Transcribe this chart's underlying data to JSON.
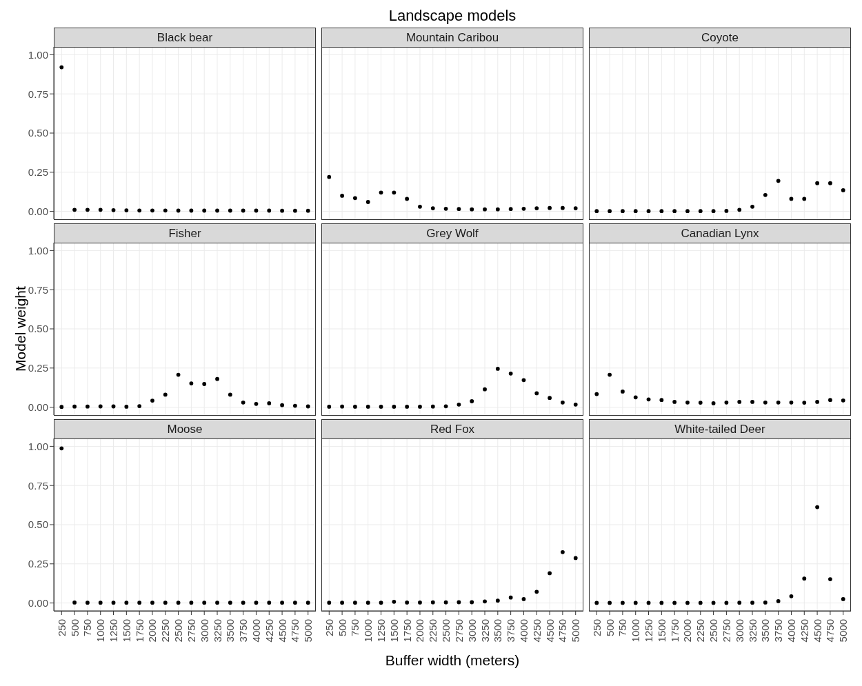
{
  "chart_data": [
    {
      "type": "scatter",
      "title": "Black bear",
      "categories": [
        "250",
        "500",
        "750",
        "1000",
        "1250",
        "1500",
        "1750",
        "2000",
        "2250",
        "2500",
        "2750",
        "3000",
        "3250",
        "3500",
        "3750",
        "4000",
        "4250",
        "4500",
        "4750",
        "5000"
      ],
      "series": [
        {
          "color": "#000000",
          "values": [
            0.92,
            0.01,
            0.01,
            0.01,
            0.008,
            0.007,
            0.006,
            0.006,
            0.006,
            0.005,
            0.005,
            0.005,
            0.005,
            0.005,
            0.005,
            0.005,
            0.005,
            0.004,
            0.004,
            0.004
          ]
        }
      ],
      "ylim": [
        -0.05,
        1.05
      ],
      "yticks": [
        {
          "value": 0,
          "label": "0.00"
        },
        {
          "value": 0.25,
          "label": "0.25"
        },
        {
          "value": 0.5,
          "label": "0.50"
        },
        {
          "value": 0.75,
          "label": "0.75"
        },
        {
          "value": 1,
          "label": "1.00"
        }
      ],
      "grid": true,
      "marker": "circle",
      "tick_labels": "y"
    },
    {
      "type": "scatter",
      "title": "Mountain Caribou",
      "annotations": [
        "Landscape models"
      ],
      "categories": [
        "250",
        "500",
        "750",
        "1000",
        "1250",
        "1500",
        "1750",
        "2000",
        "2250",
        "2500",
        "2750",
        "3000",
        "3250",
        "3500",
        "3750",
        "4000",
        "4250",
        "4500",
        "4750",
        "5000"
      ],
      "series": [
        {
          "color": "#000000",
          "values": [
            0.22,
            0.1,
            0.085,
            0.06,
            0.12,
            0.12,
            0.08,
            0.03,
            0.02,
            0.017,
            0.015,
            0.013,
            0.013,
            0.013,
            0.015,
            0.017,
            0.02,
            0.022,
            0.022,
            0.02
          ]
        }
      ],
      "ylim": [
        -0.05,
        1.05
      ],
      "yticks": [
        0,
        0.25,
        0.5,
        0.75,
        1
      ],
      "grid": true,
      "marker": "circle",
      "tick_labels": false
    },
    {
      "type": "scatter",
      "title": "Coyote",
      "categories": [
        "250",
        "500",
        "750",
        "1000",
        "1250",
        "1500",
        "1750",
        "2000",
        "2250",
        "2500",
        "2750",
        "3000",
        "3250",
        "3500",
        "3750",
        "4000",
        "4250",
        "4500",
        "4750",
        "5000"
      ],
      "series": [
        {
          "color": "#000000",
          "values": [
            0.002,
            0.002,
            0.002,
            0.002,
            0.002,
            0.002,
            0.002,
            0.002,
            0.002,
            0.002,
            0.003,
            0.01,
            0.03,
            0.105,
            0.195,
            0.08,
            0.08,
            0.18,
            0.18,
            0.135
          ]
        }
      ],
      "ylim": [
        -0.05,
        1.05
      ],
      "yticks": [
        0,
        0.25,
        0.5,
        0.75,
        1
      ],
      "grid": true,
      "marker": "circle",
      "tick_labels": false
    },
    {
      "type": "scatter",
      "title": "Fisher",
      "ylabel": "Model weight",
      "categories": [
        "250",
        "500",
        "750",
        "1000",
        "1250",
        "1500",
        "1750",
        "2000",
        "2250",
        "2500",
        "2750",
        "3000",
        "3250",
        "3500",
        "3750",
        "4000",
        "4250",
        "4500",
        "4750",
        "5000"
      ],
      "series": [
        {
          "color": "#000000",
          "values": [
            0.002,
            0.004,
            0.004,
            0.005,
            0.005,
            0.003,
            0.007,
            0.042,
            0.08,
            0.207,
            0.152,
            0.148,
            0.18,
            0.08,
            0.03,
            0.021,
            0.025,
            0.013,
            0.009,
            0.005
          ]
        }
      ],
      "ylim": [
        -0.05,
        1.05
      ],
      "yticks": [
        {
          "value": 0,
          "label": "0.00"
        },
        {
          "value": 0.25,
          "label": "0.25"
        },
        {
          "value": 0.5,
          "label": "0.50"
        },
        {
          "value": 0.75,
          "label": "0.75"
        },
        {
          "value": 1,
          "label": "1.00"
        }
      ],
      "grid": true,
      "marker": "circle",
      "tick_labels": "y"
    },
    {
      "type": "scatter",
      "title": "Grey Wolf",
      "categories": [
        "250",
        "500",
        "750",
        "1000",
        "1250",
        "1500",
        "1750",
        "2000",
        "2250",
        "2500",
        "2750",
        "3000",
        "3250",
        "3500",
        "3750",
        "4000",
        "4250",
        "4500",
        "4750",
        "5000"
      ],
      "series": [
        {
          "color": "#000000",
          "values": [
            0.003,
            0.004,
            0.003,
            0.003,
            0.003,
            0.003,
            0.003,
            0.003,
            0.004,
            0.006,
            0.017,
            0.038,
            0.114,
            0.245,
            0.215,
            0.173,
            0.089,
            0.059,
            0.03,
            0.017
          ]
        }
      ],
      "ylim": [
        -0.05,
        1.05
      ],
      "yticks": [
        0,
        0.25,
        0.5,
        0.75,
        1
      ],
      "grid": true,
      "marker": "circle",
      "tick_labels": false
    },
    {
      "type": "scatter",
      "title": "Canadian Lynx",
      "categories": [
        "250",
        "500",
        "750",
        "1000",
        "1250",
        "1500",
        "1750",
        "2000",
        "2250",
        "2500",
        "2750",
        "3000",
        "3250",
        "3500",
        "3750",
        "4000",
        "4250",
        "4500",
        "4750",
        "5000"
      ],
      "series": [
        {
          "color": "#000000",
          "values": [
            0.084,
            0.207,
            0.1,
            0.063,
            0.05,
            0.046,
            0.034,
            0.03,
            0.029,
            0.025,
            0.03,
            0.034,
            0.034,
            0.03,
            0.03,
            0.03,
            0.029,
            0.034,
            0.046,
            0.043
          ]
        }
      ],
      "ylim": [
        -0.05,
        1.05
      ],
      "yticks": [
        0,
        0.25,
        0.5,
        0.75,
        1
      ],
      "grid": true,
      "marker": "circle",
      "tick_labels": false
    },
    {
      "type": "scatter",
      "title": "Moose",
      "categories": [
        "250",
        "500",
        "750",
        "1000",
        "1250",
        "1500",
        "1750",
        "2000",
        "2250",
        "2500",
        "2750",
        "3000",
        "3250",
        "3500",
        "3750",
        "4000",
        "4250",
        "4500",
        "4750",
        "5000"
      ],
      "series": [
        {
          "color": "#000000",
          "values": [
            0.987,
            0.003,
            0.002,
            0.002,
            0.002,
            0.002,
            0.002,
            0.002,
            0.002,
            0.002,
            0.002,
            0.002,
            0.002,
            0.002,
            0.002,
            0.002,
            0.002,
            0.002,
            0.002,
            0.002
          ]
        }
      ],
      "ylim": [
        -0.05,
        1.05
      ],
      "yticks": [
        {
          "value": 0,
          "label": "0.00"
        },
        {
          "value": 0.25,
          "label": "0.25"
        },
        {
          "value": 0.5,
          "label": "0.50"
        },
        {
          "value": 0.75,
          "label": "0.75"
        },
        {
          "value": 1,
          "label": "1.00"
        }
      ],
      "grid": true,
      "marker": "circle"
    },
    {
      "type": "scatter",
      "title": "Red Fox",
      "xlabel": "Buffer width (meters)",
      "categories": [
        "250",
        "500",
        "750",
        "1000",
        "1250",
        "1500",
        "1750",
        "2000",
        "2250",
        "2500",
        "2750",
        "3000",
        "3250",
        "3500",
        "3750",
        "4000",
        "4250",
        "4500",
        "4750",
        "5000"
      ],
      "series": [
        {
          "color": "#000000",
          "values": [
            0.002,
            0.002,
            0.002,
            0.002,
            0.002,
            0.008,
            0.003,
            0.003,
            0.004,
            0.004,
            0.005,
            0.005,
            0.01,
            0.015,
            0.035,
            0.025,
            0.072,
            0.19,
            0.325,
            0.287
          ]
        }
      ],
      "ylim": [
        -0.05,
        1.05
      ],
      "yticks": [
        0,
        0.25,
        0.5,
        0.75,
        1
      ],
      "grid": true,
      "marker": "circle",
      "tick_labels": "x"
    },
    {
      "type": "scatter",
      "title": "White-tailed Deer",
      "categories": [
        "250",
        "500",
        "750",
        "1000",
        "1250",
        "1500",
        "1750",
        "2000",
        "2250",
        "2500",
        "2750",
        "3000",
        "3250",
        "3500",
        "3750",
        "4000",
        "4250",
        "4500",
        "4750",
        "5000"
      ],
      "series": [
        {
          "color": "#000000",
          "values": [
            0.001,
            0.001,
            0.001,
            0.001,
            0.001,
            0.001,
            0.001,
            0.001,
            0.001,
            0.001,
            0.001,
            0.002,
            0.002,
            0.003,
            0.012,
            0.043,
            0.156,
            0.612,
            0.152,
            0.025
          ]
        }
      ],
      "ylim": [
        -0.05,
        1.05
      ],
      "yticks": [
        0,
        0.25,
        0.5,
        0.75,
        1
      ],
      "grid": true,
      "marker": "circle",
      "tick_labels": "x"
    }
  ]
}
